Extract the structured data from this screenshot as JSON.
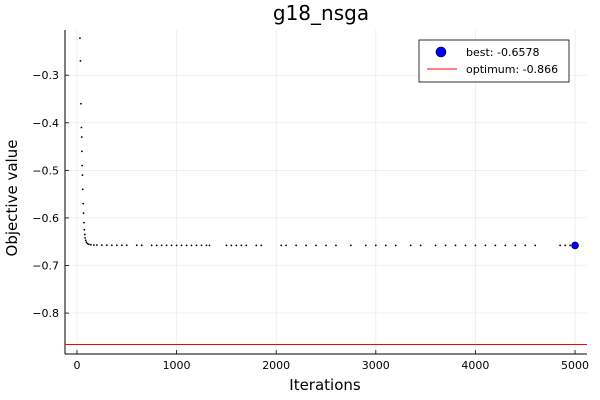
{
  "chart_data": {
    "type": "scatter",
    "title": "g18_nsga",
    "xlabel": "Iterations",
    "ylabel": "Objective value",
    "xlim": [
      -120,
      5120
    ],
    "ylim": [
      -0.886,
      -0.205
    ],
    "xticks": [
      0,
      1000,
      2000,
      3000,
      4000,
      5000
    ],
    "xtick_labels": [
      "0",
      "1000",
      "2000",
      "3000",
      "4000",
      "5000"
    ],
    "yticks": [
      -0.3,
      -0.4,
      -0.5,
      -0.6,
      -0.7,
      -0.8
    ],
    "ytick_labels": [
      "−0.3",
      "−0.4",
      "−0.5",
      "−0.6",
      "−0.7",
      "−0.8"
    ],
    "grid": true,
    "legend_position": "top-right",
    "series": [
      {
        "kind": "scatter",
        "color": "#000000",
        "points": [
          [
            30,
            -0.222
          ],
          [
            35,
            -0.27
          ],
          [
            40,
            -0.36
          ],
          [
            45,
            -0.41
          ],
          [
            48,
            -0.43
          ],
          [
            50,
            -0.46
          ],
          [
            52,
            -0.49
          ],
          [
            55,
            -0.51
          ],
          [
            58,
            -0.54
          ],
          [
            62,
            -0.57
          ],
          [
            66,
            -0.59
          ],
          [
            70,
            -0.61
          ],
          [
            74,
            -0.625
          ],
          [
            78,
            -0.635
          ],
          [
            82,
            -0.642
          ],
          [
            88,
            -0.647
          ],
          [
            95,
            -0.651
          ],
          [
            105,
            -0.654
          ],
          [
            120,
            -0.6555
          ],
          [
            140,
            -0.6565
          ],
          [
            170,
            -0.657
          ],
          [
            200,
            -0.657
          ],
          [
            250,
            -0.6572
          ],
          [
            300,
            -0.6573
          ],
          [
            350,
            -0.6574
          ],
          [
            400,
            -0.6574
          ],
          [
            450,
            -0.6575
          ],
          [
            500,
            -0.6575
          ],
          [
            600,
            -0.6576
          ],
          [
            650,
            -0.6576
          ],
          [
            750,
            -0.6576
          ],
          [
            800,
            -0.6577
          ],
          [
            850,
            -0.6577
          ],
          [
            900,
            -0.6577
          ],
          [
            950,
            -0.6577
          ],
          [
            1000,
            -0.6577
          ],
          [
            1050,
            -0.6577
          ],
          [
            1100,
            -0.6577
          ],
          [
            1150,
            -0.6577
          ],
          [
            1200,
            -0.6577
          ],
          [
            1250,
            -0.6577
          ],
          [
            1300,
            -0.6577
          ],
          [
            1330,
            -0.6577
          ],
          [
            1500,
            -0.6578
          ],
          [
            1550,
            -0.6578
          ],
          [
            1600,
            -0.6578
          ],
          [
            1650,
            -0.6578
          ],
          [
            1700,
            -0.6578
          ],
          [
            1800,
            -0.6578
          ],
          [
            1850,
            -0.6578
          ],
          [
            2050,
            -0.6578
          ],
          [
            2100,
            -0.6578
          ],
          [
            2200,
            -0.6578
          ],
          [
            2300,
            -0.6578
          ],
          [
            2400,
            -0.6578
          ],
          [
            2500,
            -0.6578
          ],
          [
            2600,
            -0.6578
          ],
          [
            2750,
            -0.6578
          ],
          [
            2900,
            -0.6578
          ],
          [
            3000,
            -0.6578
          ],
          [
            3100,
            -0.6578
          ],
          [
            3200,
            -0.6578
          ],
          [
            3350,
            -0.6578
          ],
          [
            3450,
            -0.6578
          ],
          [
            3600,
            -0.6578
          ],
          [
            3700,
            -0.6578
          ],
          [
            3800,
            -0.6578
          ],
          [
            3900,
            -0.6578
          ],
          [
            4000,
            -0.6578
          ],
          [
            4100,
            -0.6578
          ],
          [
            4200,
            -0.6578
          ],
          [
            4300,
            -0.6578
          ],
          [
            4400,
            -0.6578
          ],
          [
            4500,
            -0.6578
          ],
          [
            4600,
            -0.6578
          ],
          [
            4850,
            -0.6578
          ],
          [
            4900,
            -0.6578
          ],
          [
            4950,
            -0.6578
          ]
        ]
      },
      {
        "kind": "best-point",
        "name": "best: -0.6578",
        "color": "#0000ff",
        "x": 5000,
        "y": -0.6578
      },
      {
        "kind": "hline",
        "name": "optimum: -0.866",
        "color": "#ff0000",
        "y": -0.866
      }
    ]
  }
}
